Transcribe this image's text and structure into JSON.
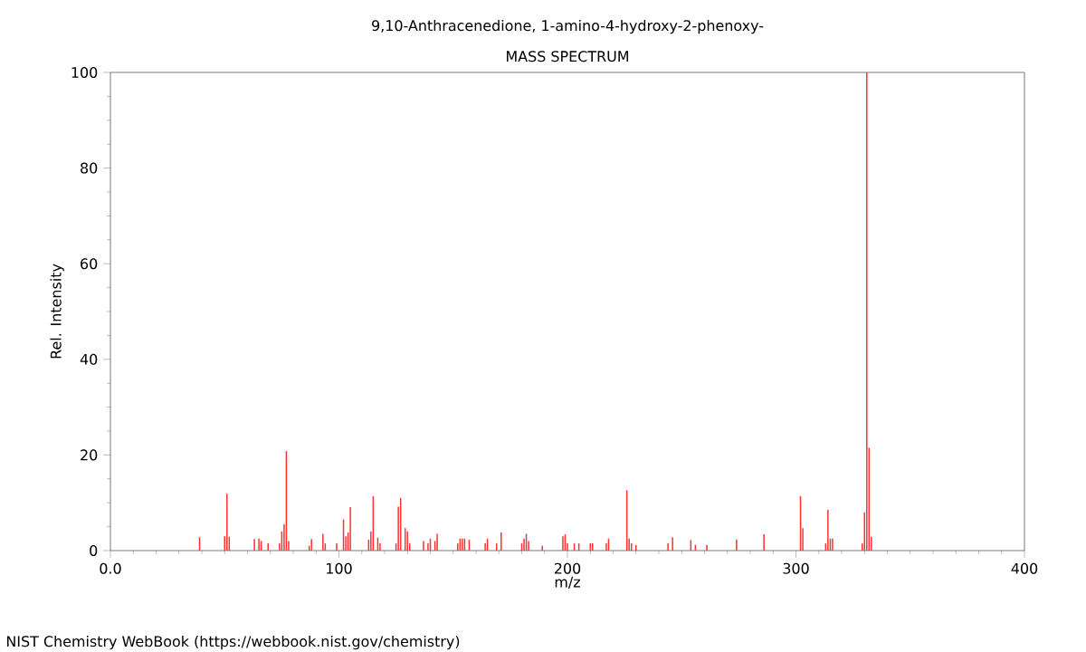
{
  "chart_data": {
    "type": "bar",
    "title": "9,10-Anthracenedione, 1-amino-4-hydroxy-2-phenoxy-",
    "subtitle": "MASS SPECTRUM",
    "xlabel": "m/z",
    "ylabel": "Rel. Intensity",
    "x": [
      39,
      50,
      51,
      52,
      63,
      65,
      66,
      69,
      74,
      75,
      76,
      77,
      78,
      87,
      88,
      93,
      94,
      99,
      102,
      103,
      104,
      105,
      113,
      114,
      115,
      117,
      118,
      125,
      126,
      127,
      129,
      130,
      131,
      137,
      139,
      140,
      142,
      143,
      152,
      153,
      154,
      155,
      157,
      164,
      165,
      169,
      171,
      180,
      181,
      182,
      183,
      189,
      198,
      199,
      200,
      203,
      205,
      210,
      211,
      217,
      218,
      226,
      227,
      228,
      230,
      244,
      246,
      254,
      256,
      261,
      274,
      286,
      302,
      303,
      313,
      314,
      315,
      316,
      329,
      330,
      331,
      332,
      333
    ],
    "values": [
      2.8,
      3,
      11.9,
      2.9,
      2.4,
      2.5,
      2,
      1.5,
      1.5,
      4,
      5.5,
      20.8,
      2,
      1,
      2.4,
      3.5,
      1.5,
      1.5,
      6.5,
      3,
      3.8,
      9.1,
      2.3,
      4,
      11.4,
      2.7,
      1.5,
      1.5,
      9.2,
      11,
      4.7,
      4,
      1.5,
      2,
      1.5,
      2.5,
      2,
      3.5,
      1.5,
      2.5,
      2.5,
      2.5,
      2.3,
      1.5,
      2.5,
      1.5,
      3.8,
      1.5,
      2.5,
      3.5,
      2,
      1,
      3,
      3.4,
      1.5,
      1.5,
      1.5,
      1.5,
      1.5,
      1.5,
      2.5,
      12.6,
      2.5,
      1.5,
      1.2,
      1.5,
      2.8,
      2.2,
      1.2,
      1.2,
      2.3,
      3.4,
      11.4,
      4.7,
      1.5,
      8.5,
      2.5,
      2.5,
      1.5,
      8,
      100,
      21.5,
      2.9
    ],
    "color": "#ff3333",
    "xlim": [
      0,
      400
    ],
    "xticks": [
      {
        "value": 0,
        "label": "0.0"
      },
      100,
      200,
      300,
      400
    ],
    "ylim": [
      0,
      100
    ],
    "yticks": [
      0,
      20,
      40,
      60,
      80,
      100
    ],
    "annotations": [
      "NIST Chemistry WebBook (https://webbook.nist.gov/chemistry)"
    ]
  }
}
